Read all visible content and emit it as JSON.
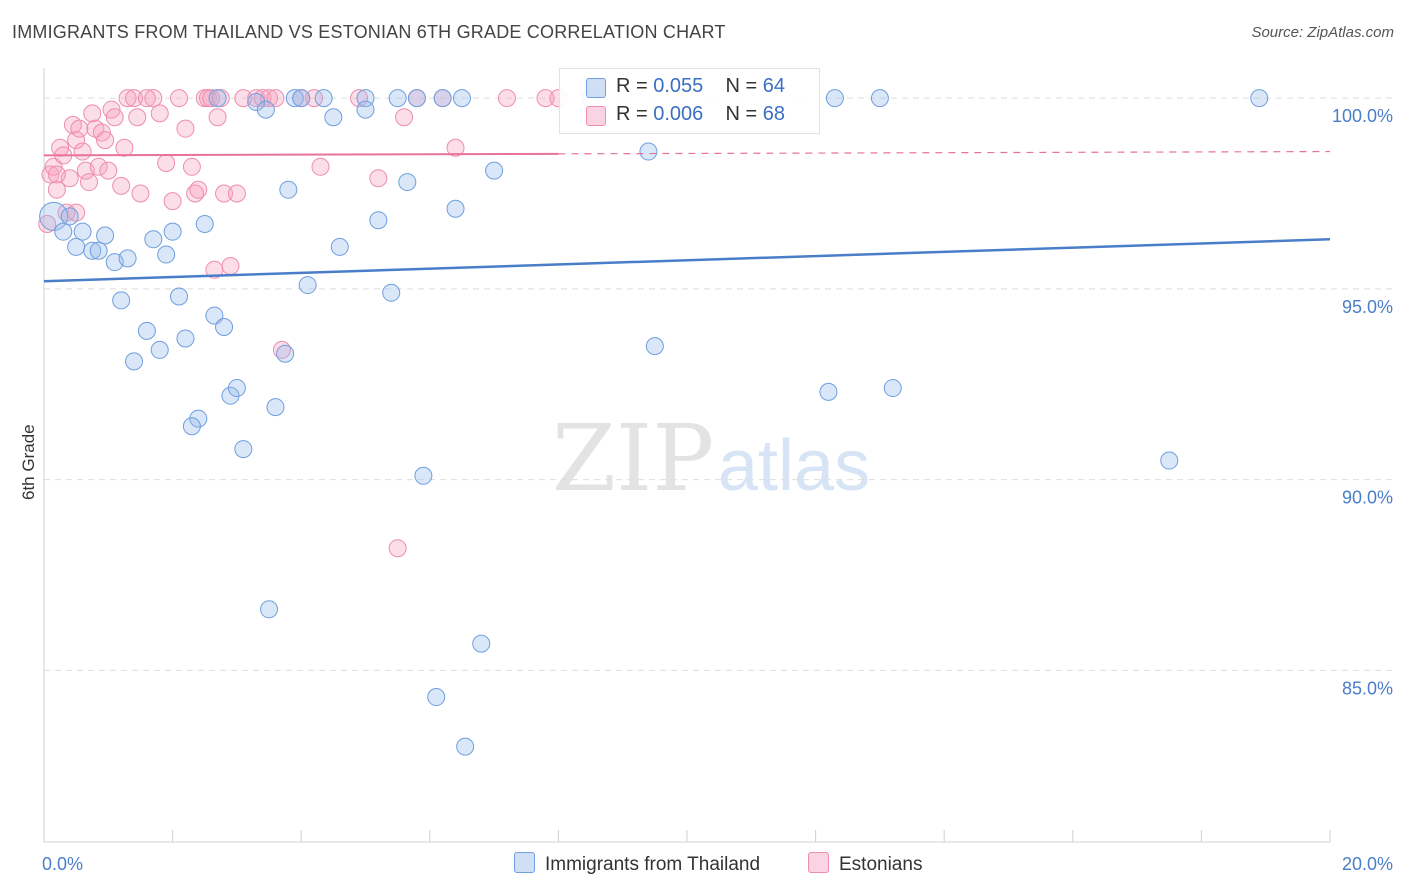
{
  "header": {
    "title": "IMMIGRANTS FROM THAILAND VS ESTONIAN 6TH GRADE CORRELATION CHART",
    "source": "Source: ZipAtlas.com"
  },
  "colors": {
    "blue": "#4a7ec9",
    "blue_fill": "rgba(150,185,235,0.35)",
    "blue_stroke": "#6f9fde",
    "pink": "#e8729a",
    "pink_fill": "rgba(245,160,190,0.35)",
    "pink_stroke": "#ee8db0",
    "grid": "#dedede",
    "axis_label": "#4a7ec9"
  },
  "legend": {
    "rows": [
      {
        "r_label": "R =",
        "r_value": "0.055",
        "n_label": "N =",
        "n_value": "64"
      },
      {
        "r_label": "R =",
        "r_value": "0.006",
        "n_label": "N =",
        "n_value": "68"
      }
    ]
  },
  "bottom_legend": {
    "items": [
      "Immigrants from Thailand",
      "Estonians"
    ]
  },
  "watermark": {
    "zip": "ZIP",
    "atlas": "atlas"
  },
  "chart_data": {
    "type": "scatter",
    "title": "IMMIGRANTS FROM THAILAND VS ESTONIAN 6TH GRADE CORRELATION CHART",
    "xlabel": "",
    "ylabel": "6th Grade",
    "xlim": [
      0,
      20
    ],
    "ylim": [
      80.5,
      101
    ],
    "x_tick_labels": [
      "0.0%",
      "20.0%"
    ],
    "y_ticks": [
      100,
      95,
      90,
      85
    ],
    "y_tick_labels": [
      "100.0%",
      "95.0%",
      "90.0%",
      "85.0%"
    ],
    "grid": true,
    "legend_position": "top-center",
    "series": [
      {
        "name": "Immigrants from Thailand",
        "color": "#4a7ec9",
        "trend": {
          "x": [
            0,
            20
          ],
          "y": [
            95.2,
            96.3
          ]
        },
        "points": [
          [
            0.15,
            96.9
          ],
          [
            0.3,
            96.5
          ],
          [
            0.5,
            96.1
          ],
          [
            0.6,
            96.5
          ],
          [
            0.75,
            96.0
          ],
          [
            0.85,
            96.0
          ],
          [
            0.95,
            96.4
          ],
          [
            1.1,
            95.7
          ],
          [
            1.3,
            95.8
          ],
          [
            1.2,
            94.7
          ],
          [
            1.6,
            93.9
          ],
          [
            1.4,
            93.1
          ],
          [
            1.7,
            96.3
          ],
          [
            1.9,
            95.9
          ],
          [
            2.0,
            96.5
          ],
          [
            2.1,
            94.8
          ],
          [
            1.8,
            93.4
          ],
          [
            2.2,
            93.7
          ],
          [
            2.4,
            91.6
          ],
          [
            2.3,
            91.4
          ],
          [
            2.5,
            96.7
          ],
          [
            2.65,
            94.3
          ],
          [
            2.8,
            94.0
          ],
          [
            2.9,
            92.2
          ],
          [
            3.0,
            92.4
          ],
          [
            3.1,
            90.8
          ],
          [
            3.3,
            99.9
          ],
          [
            3.45,
            99.7
          ],
          [
            3.5,
            86.6
          ],
          [
            3.6,
            91.9
          ],
          [
            3.75,
            93.3
          ],
          [
            3.8,
            97.6
          ],
          [
            3.9,
            100.0
          ],
          [
            4.0,
            100.0
          ],
          [
            4.1,
            95.1
          ],
          [
            4.35,
            100.0
          ],
          [
            4.5,
            99.5
          ],
          [
            4.6,
            96.1
          ],
          [
            5.0,
            100.0
          ],
          [
            5.2,
            96.8
          ],
          [
            5.4,
            94.9
          ],
          [
            5.5,
            100.0
          ],
          [
            5.65,
            97.8
          ],
          [
            5.8,
            100.0
          ],
          [
            5.9,
            90.1
          ],
          [
            6.2,
            100.0
          ],
          [
            6.1,
            84.3
          ],
          [
            6.4,
            97.1
          ],
          [
            6.5,
            100.0
          ],
          [
            6.55,
            83.0
          ],
          [
            6.8,
            85.7
          ],
          [
            7.0,
            98.1
          ],
          [
            8.5,
            100.0
          ],
          [
            9.4,
            98.6
          ],
          [
            9.5,
            93.5
          ],
          [
            12.3,
            100.0
          ],
          [
            12.2,
            92.3
          ],
          [
            13.0,
            100.0
          ],
          [
            13.2,
            92.4
          ],
          [
            17.5,
            90.5
          ],
          [
            18.9,
            100.0
          ],
          [
            0.4,
            96.9
          ],
          [
            5.0,
            99.7
          ],
          [
            2.7,
            100.0
          ]
        ]
      },
      {
        "name": "Estonians",
        "color": "#e8729a",
        "trend": {
          "x": [
            0,
            20
          ],
          "y": [
            98.5,
            98.6
          ]
        },
        "points": [
          [
            0.05,
            96.7
          ],
          [
            0.1,
            98.0
          ],
          [
            0.15,
            98.2
          ],
          [
            0.2,
            97.6
          ],
          [
            0.25,
            98.7
          ],
          [
            0.3,
            98.5
          ],
          [
            0.35,
            97.0
          ],
          [
            0.4,
            97.9
          ],
          [
            0.45,
            99.3
          ],
          [
            0.5,
            98.9
          ],
          [
            0.55,
            99.2
          ],
          [
            0.6,
            98.6
          ],
          [
            0.65,
            98.1
          ],
          [
            0.7,
            97.8
          ],
          [
            0.75,
            99.6
          ],
          [
            0.8,
            99.2
          ],
          [
            0.85,
            98.2
          ],
          [
            0.9,
            99.1
          ],
          [
            0.95,
            98.9
          ],
          [
            1.0,
            98.1
          ],
          [
            1.05,
            99.7
          ],
          [
            1.1,
            99.5
          ],
          [
            1.2,
            97.7
          ],
          [
            1.25,
            98.7
          ],
          [
            1.3,
            100.0
          ],
          [
            1.4,
            100.0
          ],
          [
            1.45,
            99.5
          ],
          [
            1.5,
            97.5
          ],
          [
            1.6,
            100.0
          ],
          [
            1.7,
            100.0
          ],
          [
            1.8,
            99.6
          ],
          [
            1.9,
            98.3
          ],
          [
            2.0,
            97.3
          ],
          [
            2.1,
            100.0
          ],
          [
            2.2,
            99.2
          ],
          [
            2.3,
            98.2
          ],
          [
            2.35,
            97.5
          ],
          [
            2.4,
            97.6
          ],
          [
            2.5,
            100.0
          ],
          [
            2.55,
            100.0
          ],
          [
            2.6,
            100.0
          ],
          [
            2.65,
            95.5
          ],
          [
            2.7,
            99.5
          ],
          [
            2.75,
            100.0
          ],
          [
            2.8,
            97.5
          ],
          [
            2.9,
            95.6
          ],
          [
            3.0,
            97.5
          ],
          [
            3.1,
            100.0
          ],
          [
            3.3,
            100.0
          ],
          [
            3.4,
            100.0
          ],
          [
            3.5,
            100.0
          ],
          [
            3.6,
            100.0
          ],
          [
            3.7,
            93.4
          ],
          [
            4.0,
            100.0
          ],
          [
            4.2,
            100.0
          ],
          [
            4.3,
            98.2
          ],
          [
            4.9,
            100.0
          ],
          [
            5.2,
            97.9
          ],
          [
            5.5,
            88.2
          ],
          [
            5.6,
            99.5
          ],
          [
            5.8,
            100.0
          ],
          [
            6.2,
            100.0
          ],
          [
            6.4,
            98.7
          ],
          [
            7.2,
            100.0
          ],
          [
            7.8,
            100.0
          ],
          [
            8.0,
            100.0
          ],
          [
            0.2,
            98.0
          ],
          [
            0.5,
            97.0
          ]
        ]
      }
    ]
  }
}
